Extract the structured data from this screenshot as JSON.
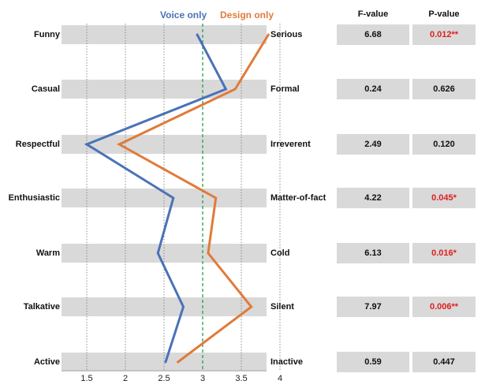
{
  "chart_data": {
    "type": "line",
    "orientation": "vertical-profile",
    "left_labels": [
      "Funny",
      "Casual",
      "Respectful",
      "Enthusiastic",
      "Warm",
      "Talkative",
      "Active"
    ],
    "right_labels": [
      "Serious",
      "Formal",
      "Irreverent",
      "Matter-of-fact",
      "Cold",
      "Silent",
      "Inactive"
    ],
    "x_ticks": [
      "1.5",
      "2",
      "2.5",
      "3",
      "3.5",
      "4"
    ],
    "xlim": [
      1.0,
      4.0
    ],
    "reference_line": 3,
    "series": [
      {
        "name": "Voice only",
        "color": "#4a72b8",
        "values": [
          2.93,
          3.3,
          1.5,
          2.62,
          2.42,
          2.75,
          2.52
        ]
      },
      {
        "name": "Design only",
        "color": "#e07b3a",
        "values": [
          3.85,
          3.42,
          1.92,
          3.17,
          3.07,
          3.63,
          2.68
        ]
      }
    ],
    "table": {
      "f_header": "F-value",
      "p_header": "P-value",
      "f_values": [
        "6.68",
        "0.24",
        "2.49",
        "4.22",
        "6.13",
        "7.97",
        "0.59"
      ],
      "p_values": [
        "0.012**",
        "0.626",
        "0.120",
        "0.045*",
        "0.016*",
        "0.006**",
        "0.447"
      ],
      "p_significant": [
        true,
        false,
        false,
        true,
        true,
        true,
        false
      ]
    }
  }
}
